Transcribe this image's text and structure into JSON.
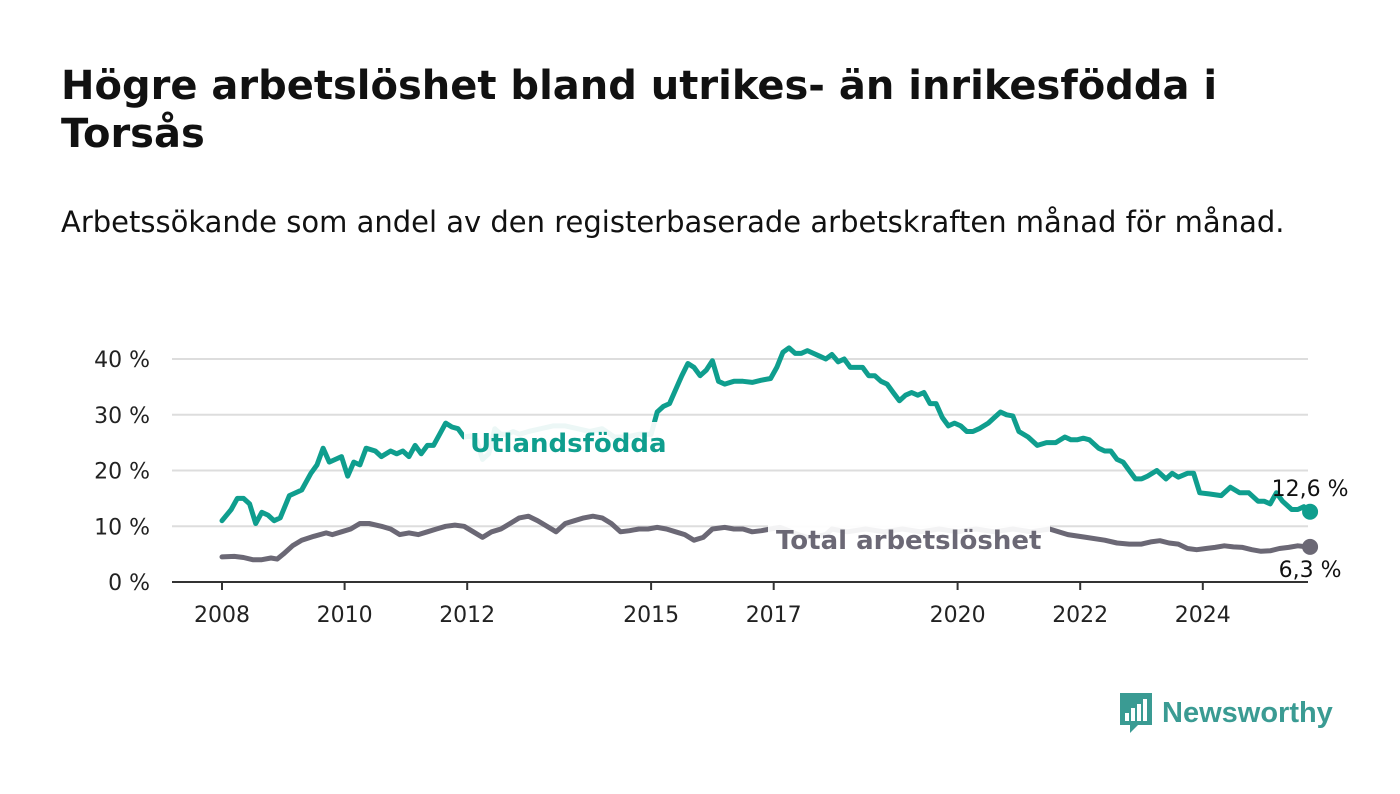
{
  "title": "Högre arbetslöshet bland utrikes- än inrikesfödda i Torsås",
  "subtitle": "Arbetssökande som andel av den registerbaserade arbetskraften månad för månad.",
  "logo": {
    "text": "Newsworthy",
    "icon": "newsworthy-chart-bubble-icon"
  },
  "colors": {
    "foreign_born": "#0f9e8e",
    "total": "#6b6875",
    "grid": "#dddddd",
    "axis": "#333333"
  },
  "chart_data": {
    "type": "line",
    "title": "Högre arbetslöshet bland utrikes- än inrikesfödda i Torsås",
    "subtitle": "Arbetssökande som andel av den registerbaserade arbetskraften månad för månad.",
    "xlabel": "",
    "ylabel": "",
    "xlim": [
      2007.6,
      2025.75
    ],
    "ylim": [
      0,
      40
    ],
    "y_ticks": [
      0,
      10,
      20,
      30,
      40
    ],
    "y_tick_labels": [
      "0 %",
      "10 %",
      "20 %",
      "30 %",
      "40 %"
    ],
    "x_ticks": [
      2008,
      2010,
      2012,
      2015,
      2017,
      2020,
      2022,
      2024
    ],
    "x_tick_labels": [
      "2008",
      "2010",
      "2012",
      "2015",
      "2017",
      "2020",
      "2022",
      "2024"
    ],
    "grid": true,
    "legend": "inline labels",
    "series": [
      {
        "name": "Utlandsfödda",
        "color": "#0f9e8e",
        "end_label": "12,6 %",
        "points": [
          [
            2008.0,
            11
          ],
          [
            2008.15,
            13
          ],
          [
            2008.25,
            15
          ],
          [
            2008.35,
            15
          ],
          [
            2008.45,
            14
          ],
          [
            2008.55,
            10.5
          ],
          [
            2008.65,
            12.5
          ],
          [
            2008.75,
            12
          ],
          [
            2008.85,
            11
          ],
          [
            2008.95,
            11.5
          ],
          [
            2009.1,
            15.5
          ],
          [
            2009.3,
            16.5
          ],
          [
            2009.45,
            19.5
          ],
          [
            2009.55,
            21
          ],
          [
            2009.65,
            24
          ],
          [
            2009.75,
            21.5
          ],
          [
            2009.85,
            22
          ],
          [
            2009.95,
            22.5
          ],
          [
            2010.05,
            19
          ],
          [
            2010.15,
            21.5
          ],
          [
            2010.25,
            21
          ],
          [
            2010.35,
            24
          ],
          [
            2010.5,
            23.5
          ],
          [
            2010.6,
            22.5
          ],
          [
            2010.75,
            23.5
          ],
          [
            2010.85,
            23
          ],
          [
            2010.95,
            23.5
          ],
          [
            2011.05,
            22.5
          ],
          [
            2011.15,
            24.5
          ],
          [
            2011.25,
            23
          ],
          [
            2011.35,
            24.5
          ],
          [
            2011.45,
            24.5
          ],
          [
            2011.55,
            26.5
          ],
          [
            2011.65,
            28.5
          ],
          [
            2011.75,
            27.8
          ],
          [
            2011.85,
            27.5
          ],
          [
            2011.95,
            26
          ],
          [
            2012.05,
            26.2
          ],
          [
            2012.15,
            25.5
          ],
          [
            2012.25,
            22
          ],
          [
            2012.35,
            23
          ],
          [
            2012.45,
            27.5
          ],
          [
            2012.55,
            26.5
          ],
          [
            2012.65,
            26.5
          ],
          [
            2012.75,
            27
          ],
          [
            2012.85,
            26.5
          ],
          [
            2013.0,
            27
          ],
          [
            2013.2,
            27.5
          ],
          [
            2013.4,
            28
          ],
          [
            2013.6,
            28
          ],
          [
            2013.8,
            27.5
          ],
          [
            2014.0,
            27
          ],
          [
            2014.2,
            27.5
          ],
          [
            2014.4,
            26
          ],
          [
            2014.6,
            26
          ],
          [
            2014.8,
            26.5
          ],
          [
            2015.0,
            26.5
          ],
          [
            2015.1,
            30.5
          ],
          [
            2015.2,
            31.5
          ],
          [
            2015.3,
            32
          ],
          [
            2015.4,
            34.5
          ],
          [
            2015.5,
            37
          ],
          [
            2015.6,
            39.2
          ],
          [
            2015.7,
            38.5
          ],
          [
            2015.8,
            37
          ],
          [
            2015.9,
            38
          ],
          [
            2016.0,
            39.7
          ],
          [
            2016.1,
            36
          ],
          [
            2016.2,
            35.5
          ],
          [
            2016.35,
            36
          ],
          [
            2016.5,
            36
          ],
          [
            2016.65,
            35.8
          ],
          [
            2016.8,
            36.2
          ],
          [
            2016.95,
            36.5
          ],
          [
            2017.05,
            38.5
          ],
          [
            2017.15,
            41.2
          ],
          [
            2017.25,
            42
          ],
          [
            2017.35,
            41
          ],
          [
            2017.45,
            41
          ],
          [
            2017.55,
            41.5
          ],
          [
            2017.65,
            41
          ],
          [
            2017.75,
            40.5
          ],
          [
            2017.85,
            40
          ],
          [
            2017.95,
            40.8
          ],
          [
            2018.05,
            39.5
          ],
          [
            2018.15,
            40
          ],
          [
            2018.25,
            38.5
          ],
          [
            2018.35,
            38.5
          ],
          [
            2018.45,
            38.5
          ],
          [
            2018.55,
            37
          ],
          [
            2018.65,
            37
          ],
          [
            2018.75,
            36
          ],
          [
            2018.85,
            35.5
          ],
          [
            2018.95,
            34
          ],
          [
            2019.05,
            32.5
          ],
          [
            2019.15,
            33.5
          ],
          [
            2019.25,
            34
          ],
          [
            2019.35,
            33.5
          ],
          [
            2019.45,
            34
          ],
          [
            2019.55,
            32
          ],
          [
            2019.65,
            32
          ],
          [
            2019.75,
            29.5
          ],
          [
            2019.85,
            28
          ],
          [
            2019.95,
            28.5
          ],
          [
            2020.05,
            28
          ],
          [
            2020.15,
            27
          ],
          [
            2020.25,
            27
          ],
          [
            2020.35,
            27.5
          ],
          [
            2020.5,
            28.5
          ],
          [
            2020.6,
            29.5
          ],
          [
            2020.7,
            30.5
          ],
          [
            2020.8,
            30
          ],
          [
            2020.9,
            29.8
          ],
          [
            2021.0,
            27
          ],
          [
            2021.15,
            26
          ],
          [
            2021.3,
            24.5
          ],
          [
            2021.45,
            25
          ],
          [
            2021.6,
            25
          ],
          [
            2021.75,
            26
          ],
          [
            2021.85,
            25.5
          ],
          [
            2021.95,
            25.5
          ],
          [
            2022.05,
            25.8
          ],
          [
            2022.15,
            25.5
          ],
          [
            2022.3,
            24
          ],
          [
            2022.4,
            23.5
          ],
          [
            2022.5,
            23.5
          ],
          [
            2022.6,
            22
          ],
          [
            2022.7,
            21.5
          ],
          [
            2022.8,
            20
          ],
          [
            2022.9,
            18.5
          ],
          [
            2023.0,
            18.5
          ],
          [
            2023.1,
            19
          ],
          [
            2023.25,
            20
          ],
          [
            2023.4,
            18.5
          ],
          [
            2023.5,
            19.5
          ],
          [
            2023.6,
            18.8
          ],
          [
            2023.75,
            19.5
          ],
          [
            2023.85,
            19.5
          ],
          [
            2023.95,
            16
          ],
          [
            2024.1,
            15.8
          ],
          [
            2024.3,
            15.5
          ],
          [
            2024.45,
            17
          ],
          [
            2024.6,
            16
          ],
          [
            2024.75,
            16
          ],
          [
            2024.9,
            14.5
          ],
          [
            2025.0,
            14.5
          ],
          [
            2025.1,
            14
          ],
          [
            2025.2,
            16
          ],
          [
            2025.3,
            14.5
          ],
          [
            2025.45,
            13
          ],
          [
            2025.55,
            13
          ],
          [
            2025.65,
            13.5
          ],
          [
            2025.75,
            12.6
          ]
        ]
      },
      {
        "name": "Total arbetslöshet",
        "color": "#6b6875",
        "end_label": "6,3 %",
        "points": [
          [
            2008.0,
            4.5
          ],
          [
            2008.2,
            4.6
          ],
          [
            2008.35,
            4.4
          ],
          [
            2008.5,
            4
          ],
          [
            2008.65,
            4
          ],
          [
            2008.8,
            4.3
          ],
          [
            2008.9,
            4.1
          ],
          [
            2009.0,
            5
          ],
          [
            2009.15,
            6.5
          ],
          [
            2009.3,
            7.5
          ],
          [
            2009.5,
            8.2
          ],
          [
            2009.7,
            8.8
          ],
          [
            2009.8,
            8.5
          ],
          [
            2009.95,
            9
          ],
          [
            2010.1,
            9.5
          ],
          [
            2010.25,
            10.5
          ],
          [
            2010.4,
            10.5
          ],
          [
            2010.6,
            10
          ],
          [
            2010.75,
            9.5
          ],
          [
            2010.9,
            8.5
          ],
          [
            2011.05,
            8.8
          ],
          [
            2011.2,
            8.5
          ],
          [
            2011.35,
            9
          ],
          [
            2011.5,
            9.5
          ],
          [
            2011.65,
            10
          ],
          [
            2011.8,
            10.2
          ],
          [
            2011.95,
            10
          ],
          [
            2012.1,
            9
          ],
          [
            2012.25,
            8
          ],
          [
            2012.4,
            9
          ],
          [
            2012.55,
            9.5
          ],
          [
            2012.7,
            10.5
          ],
          [
            2012.85,
            11.5
          ],
          [
            2013.0,
            11.8
          ],
          [
            2013.15,
            11
          ],
          [
            2013.3,
            10
          ],
          [
            2013.45,
            9
          ],
          [
            2013.6,
            10.5
          ],
          [
            2013.75,
            11
          ],
          [
            2013.9,
            11.5
          ],
          [
            2014.05,
            11.8
          ],
          [
            2014.2,
            11.5
          ],
          [
            2014.35,
            10.5
          ],
          [
            2014.5,
            9
          ],
          [
            2014.65,
            9.2
          ],
          [
            2014.8,
            9.5
          ],
          [
            2014.95,
            9.5
          ],
          [
            2015.1,
            9.8
          ],
          [
            2015.25,
            9.5
          ],
          [
            2015.4,
            9
          ],
          [
            2015.55,
            8.5
          ],
          [
            2015.7,
            7.5
          ],
          [
            2015.85,
            8
          ],
          [
            2016.0,
            9.5
          ],
          [
            2016.2,
            9.8
          ],
          [
            2016.35,
            9.5
          ],
          [
            2016.5,
            9.5
          ],
          [
            2016.65,
            9
          ],
          [
            2016.8,
            9.2
          ],
          [
            2016.95,
            9.5
          ],
          [
            2017.1,
            9.8
          ],
          [
            2017.25,
            9.2
          ],
          [
            2017.4,
            8.5
          ],
          [
            2017.55,
            8
          ],
          [
            2017.7,
            8.2
          ],
          [
            2017.85,
            8.5
          ],
          [
            2017.95,
            9.5
          ],
          [
            2018.2,
            9
          ],
          [
            2018.5,
            9.5
          ],
          [
            2018.8,
            9
          ],
          [
            2019.1,
            9.5
          ],
          [
            2019.4,
            9
          ],
          [
            2019.7,
            9.5
          ],
          [
            2020.0,
            9
          ],
          [
            2020.3,
            9.5
          ],
          [
            2020.6,
            9
          ],
          [
            2020.9,
            9.5
          ],
          [
            2021.2,
            9
          ],
          [
            2021.5,
            9.5
          ],
          [
            2021.8,
            8.5
          ],
          [
            2022.1,
            8
          ],
          [
            2022.4,
            7.5
          ],
          [
            2022.6,
            7
          ],
          [
            2022.8,
            6.8
          ],
          [
            2023.0,
            6.8
          ],
          [
            2023.15,
            7.2
          ],
          [
            2023.3,
            7.4
          ],
          [
            2023.45,
            7
          ],
          [
            2023.6,
            6.8
          ],
          [
            2023.75,
            6
          ],
          [
            2023.9,
            5.8
          ],
          [
            2024.05,
            6
          ],
          [
            2024.2,
            6.2
          ],
          [
            2024.35,
            6.5
          ],
          [
            2024.5,
            6.3
          ],
          [
            2024.65,
            6.2
          ],
          [
            2024.8,
            5.8
          ],
          [
            2024.95,
            5.5
          ],
          [
            2025.1,
            5.6
          ],
          [
            2025.25,
            6
          ],
          [
            2025.4,
            6.2
          ],
          [
            2025.55,
            6.5
          ],
          [
            2025.7,
            6.3
          ],
          [
            2025.75,
            6.3
          ]
        ]
      }
    ]
  }
}
